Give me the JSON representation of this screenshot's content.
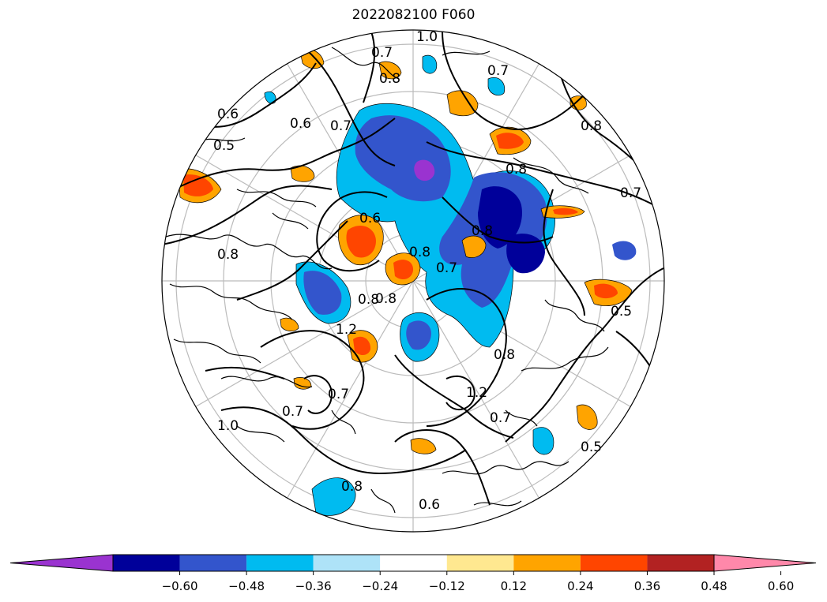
{
  "title": "2022082100 F060",
  "colorbar": {
    "colors": [
      "#9a33d0",
      "#00009a",
      "#3355cc",
      "#00bbf0",
      "#aee3f8",
      "#ffffff",
      "#ffe890",
      "#ffa400",
      "#ff4500",
      "#b22222",
      "#ff88aa"
    ],
    "tick_labels": [
      "−0.60",
      "−0.48",
      "−0.36",
      "−0.24",
      "−0.12",
      "0.12",
      "0.24",
      "0.36",
      "0.48",
      "0.60"
    ],
    "extend": "both"
  },
  "contour_labels": [
    "1.0",
    "0.7",
    "0.8",
    "0.7",
    "0.6",
    "0.6",
    "0.5",
    "0.7",
    "0.8",
    "0.8",
    "0.7",
    "0.6",
    "0.8",
    "0.8",
    "0.7",
    "0.8",
    "1.2",
    "0.8",
    "0.5",
    "0.7",
    "0.8",
    "1.2",
    "0.7",
    "0.5",
    "1.0",
    "0.7",
    "0.8",
    "0.6",
    "0.8"
  ],
  "map": {
    "projection": "north polar stereographic",
    "coastlines": true,
    "graticule": true
  }
}
